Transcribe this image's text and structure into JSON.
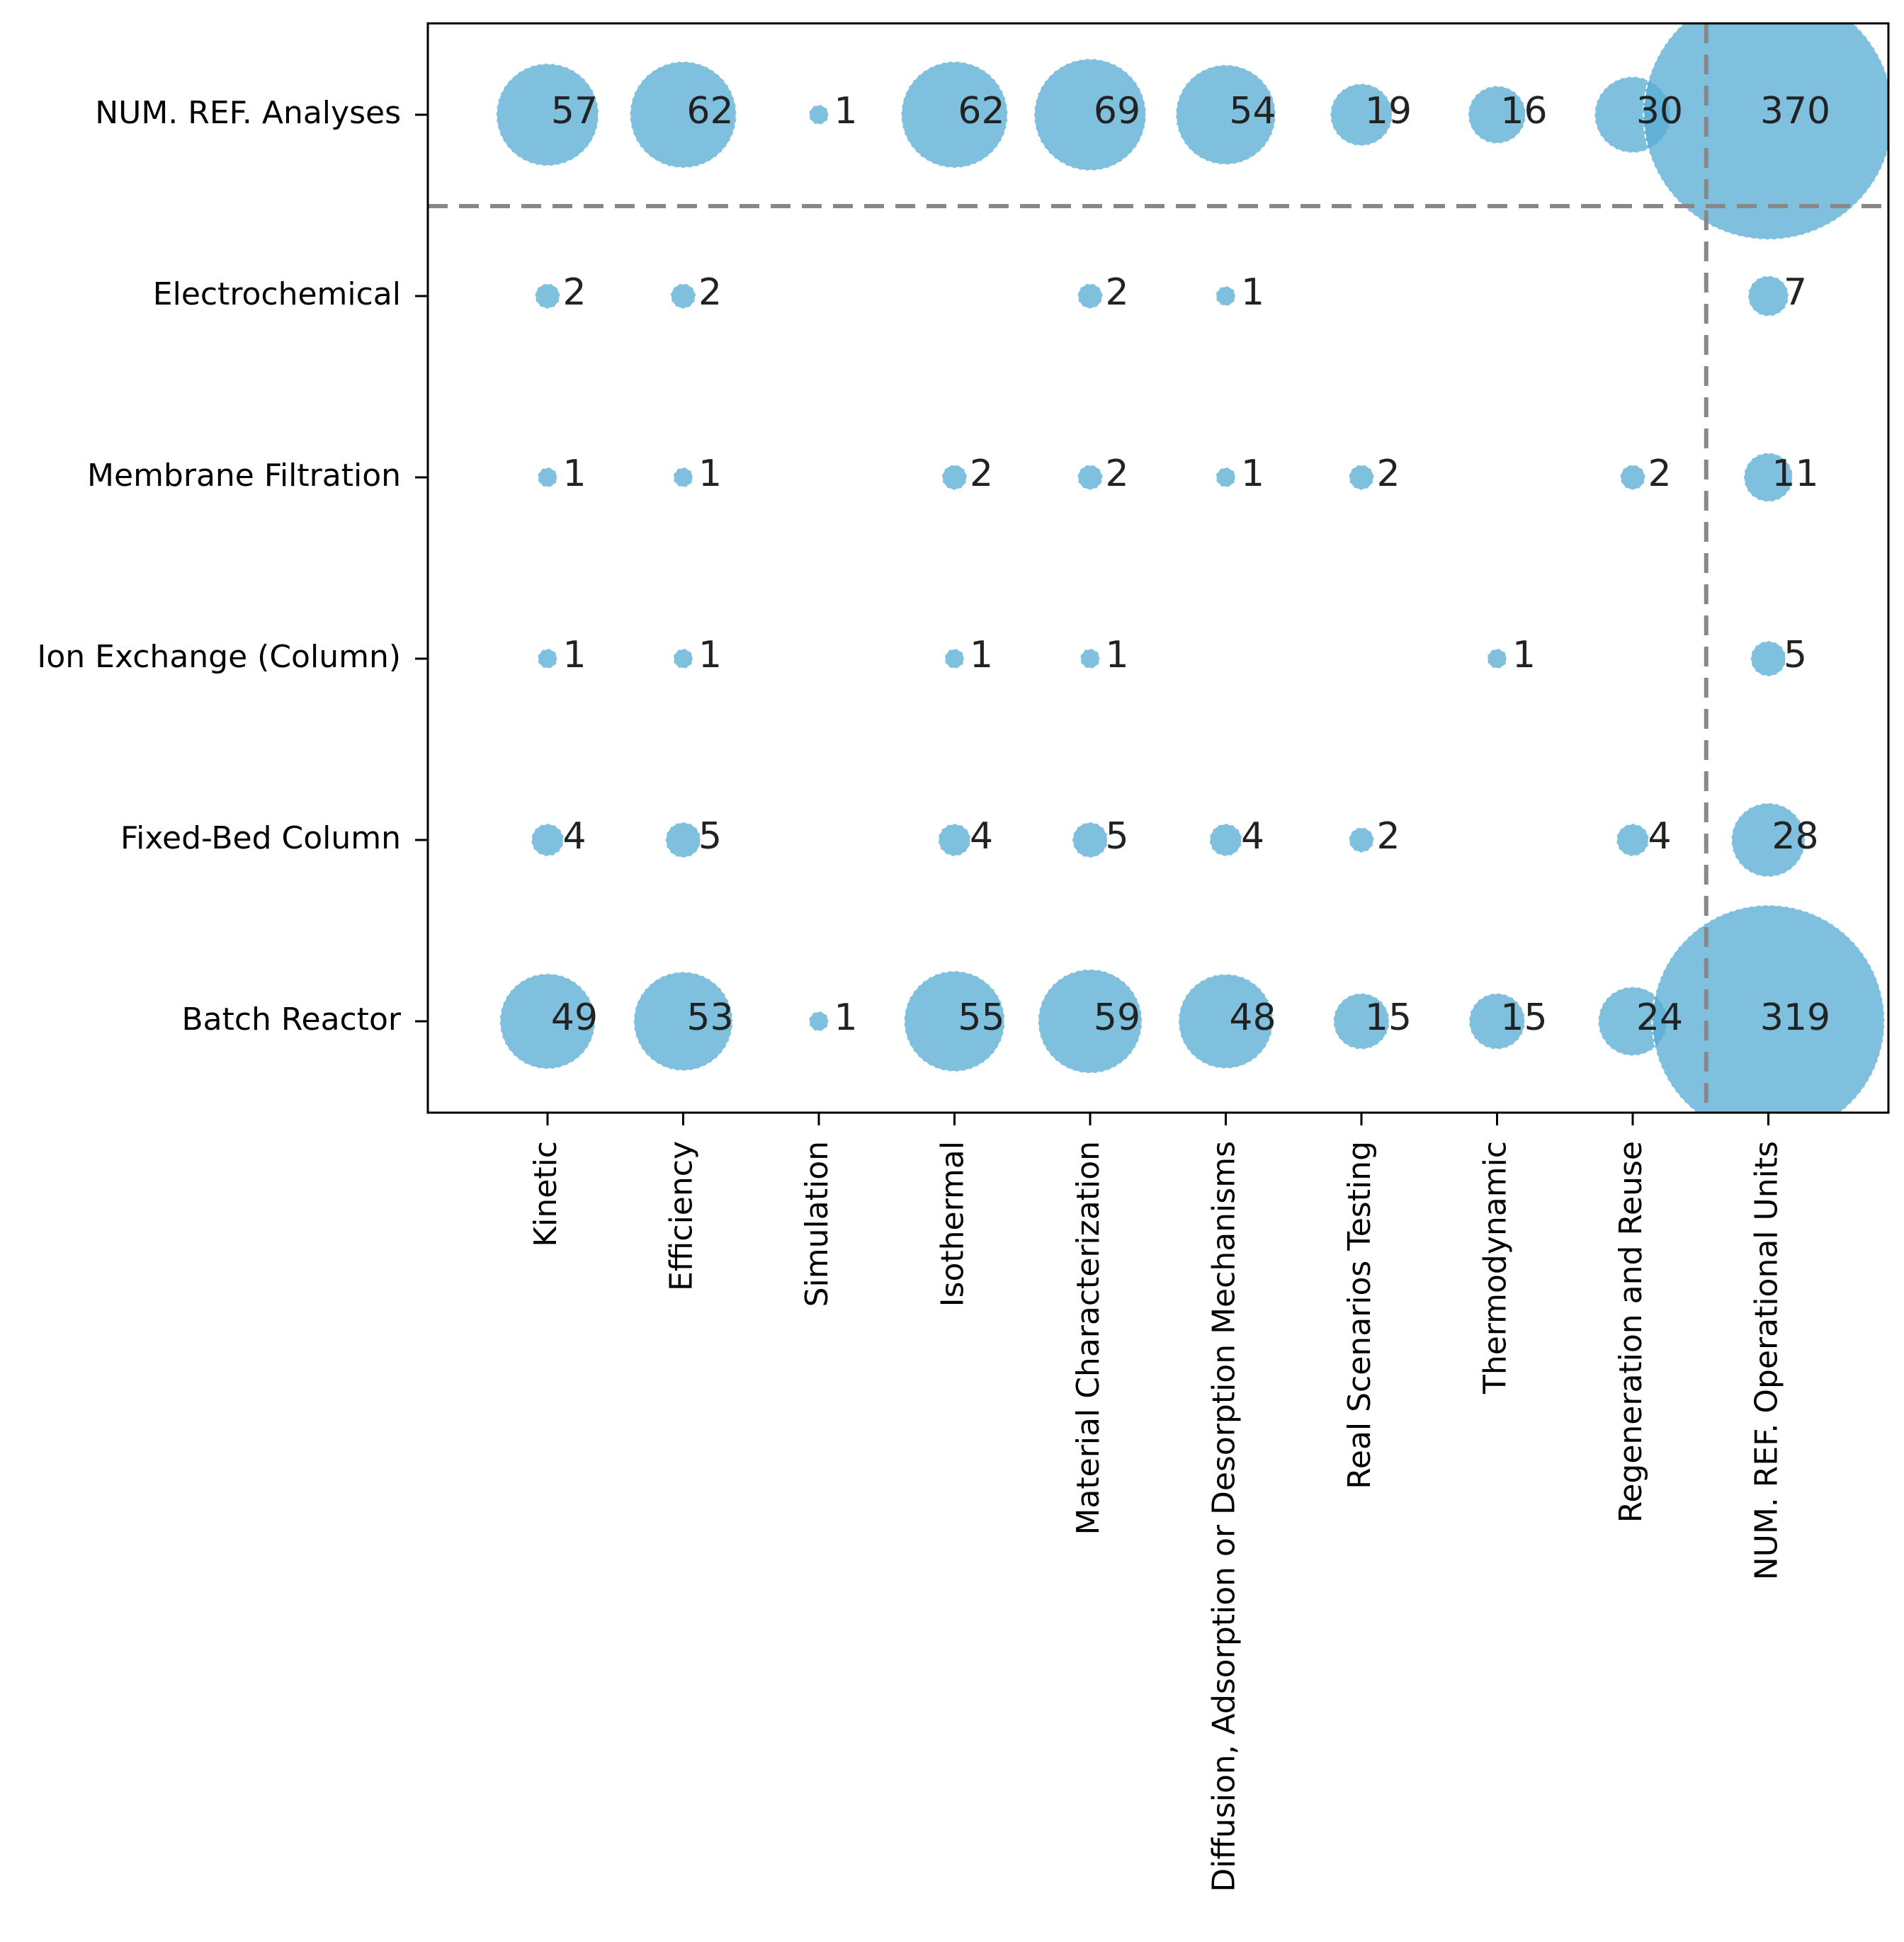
{
  "chart_data": {
    "type": "scatter",
    "subtype": "bubble-matrix",
    "title": "",
    "xlabel": "",
    "ylabel": "",
    "grid": false,
    "bubble_color": "#5aaed5",
    "divider_color": "#888888",
    "x_categories": [
      "Kinetic",
      "Efficiency",
      "Simulation",
      "Isothermal",
      "Material Characterization",
      "Diffusion, Adsorption or Desorption Mechanisms",
      "Real Scenarios Testing",
      "Thermodynamic",
      "Regeneration and Reuse",
      "NUM. REF. Operational Units"
    ],
    "y_categories": [
      "NUM. REF. Analyses",
      "Electrochemical",
      "Membrane Filtration",
      "Ion Exchange (Column)",
      "Fixed-Bed Column",
      "Batch Reactor"
    ],
    "matrix": [
      [
        57,
        62,
        1,
        62,
        69,
        54,
        19,
        16,
        30,
        370
      ],
      [
        2,
        2,
        null,
        null,
        2,
        1,
        null,
        null,
        null,
        7
      ],
      [
        1,
        1,
        null,
        2,
        2,
        1,
        2,
        null,
        2,
        11
      ],
      [
        1,
        1,
        null,
        1,
        1,
        null,
        null,
        1,
        null,
        5
      ],
      [
        4,
        5,
        null,
        4,
        5,
        4,
        2,
        null,
        4,
        28
      ],
      [
        49,
        53,
        1,
        55,
        59,
        48,
        15,
        15,
        24,
        319
      ]
    ]
  }
}
